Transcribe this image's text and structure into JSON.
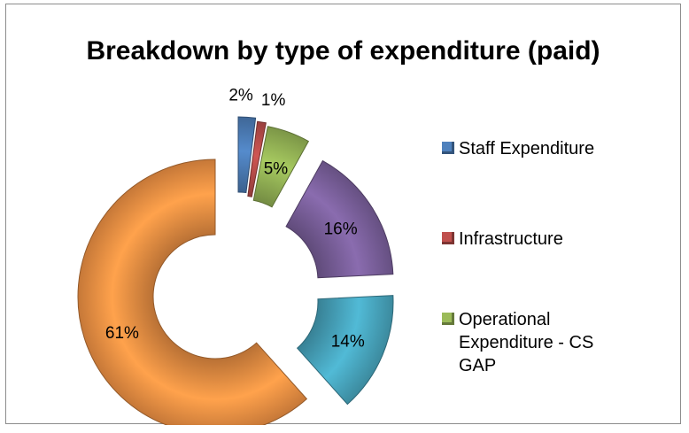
{
  "chart_data": {
    "type": "pie",
    "variant": "exploded-doughnut",
    "title": "Breakdown by type of expenditure (paid)",
    "legend_position": "right",
    "slices": [
      {
        "label": "Staff Expenditure",
        "value": 2,
        "display": "2%",
        "color": "#4f81bd"
      },
      {
        "label": "Infrastructure",
        "value": 1,
        "display": "1%",
        "color": "#c0504d"
      },
      {
        "label": "Operational Expenditure - CS GAP",
        "value": 5,
        "display": "5%",
        "color": "#9bbb59"
      },
      {
        "label": "",
        "value": 16,
        "display": "16%",
        "color": "#8064a2"
      },
      {
        "label": "",
        "value": 14,
        "display": "14%",
        "color": "#4bacc6"
      },
      {
        "label": "",
        "value": 61,
        "display": "61%",
        "color": "#f79646"
      }
    ],
    "legend": [
      "Staff Expenditure",
      "Infrastructure",
      "Operational Expenditure - CS GAP"
    ]
  }
}
